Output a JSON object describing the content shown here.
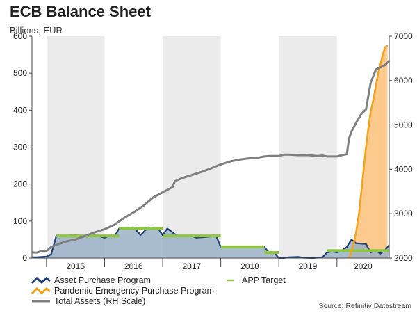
{
  "chart_data": {
    "type": "line",
    "title": "ECB Balance Sheet",
    "subtitle": "Billions, EUR",
    "source": "Source: Refinitiv Datastream",
    "y_left": {
      "min": 0,
      "max": 600,
      "ticks": [
        0,
        100,
        200,
        300,
        400,
        500,
        600
      ]
    },
    "y_right": {
      "min": 2000,
      "max": 7000,
      "ticks": [
        2000,
        3000,
        4000,
        5000,
        6000,
        7000
      ]
    },
    "x_range": [
      2014.75,
      2020.9
    ],
    "year_labels": [
      "2015",
      "2016",
      "2017",
      "2018",
      "2019",
      "2020"
    ],
    "shaded_years": [
      2015,
      2017,
      2019
    ],
    "colors": {
      "app": "#1f3f73",
      "app_fill": "#9bb0c8",
      "pepp": "#f7a11a",
      "pepp_fill": "#fdca8e",
      "total": "#7f7f7f",
      "target": "#8dc63f",
      "shade": "#ebebeb",
      "axis": "#444444"
    },
    "series": [
      {
        "name": "Asset Purchase Program",
        "axis": "left",
        "points": [
          [
            2014.75,
            2
          ],
          [
            2014.83,
            2
          ],
          [
            2014.92,
            3
          ],
          [
            2015.0,
            4
          ],
          [
            2015.08,
            10
          ],
          [
            2015.17,
            60
          ],
          [
            2015.5,
            62
          ],
          [
            2015.7,
            58
          ],
          [
            2015.83,
            62
          ],
          [
            2016.0,
            55
          ],
          [
            2016.08,
            60
          ],
          [
            2016.17,
            58
          ],
          [
            2016.25,
            80
          ],
          [
            2016.5,
            83
          ],
          [
            2016.62,
            62
          ],
          [
            2016.75,
            83
          ],
          [
            2016.92,
            80
          ],
          [
            2017.0,
            62
          ],
          [
            2017.08,
            80
          ],
          [
            2017.25,
            60
          ],
          [
            2017.5,
            60
          ],
          [
            2017.58,
            55
          ],
          [
            2017.75,
            57
          ],
          [
            2017.92,
            60
          ],
          [
            2018.0,
            30
          ],
          [
            2018.25,
            30
          ],
          [
            2018.75,
            30
          ],
          [
            2018.83,
            15
          ],
          [
            2018.92,
            15
          ],
          [
            2019.0,
            0
          ],
          [
            2019.08,
            0
          ],
          [
            2019.17,
            2
          ],
          [
            2019.33,
            3
          ],
          [
            2019.42,
            1
          ],
          [
            2019.58,
            0
          ],
          [
            2019.75,
            2
          ],
          [
            2019.83,
            15
          ],
          [
            2019.92,
            18
          ],
          [
            2020.0,
            15
          ],
          [
            2020.08,
            20
          ],
          [
            2020.17,
            30
          ],
          [
            2020.25,
            50
          ],
          [
            2020.33,
            40
          ],
          [
            2020.5,
            38
          ],
          [
            2020.58,
            15
          ],
          [
            2020.67,
            20
          ],
          [
            2020.75,
            12
          ],
          [
            2020.83,
            22
          ],
          [
            2020.9,
            35
          ]
        ]
      },
      {
        "name": "Pandemic Emergency Purchase Program",
        "axis": "left",
        "points": [
          [
            2020.21,
            0
          ],
          [
            2020.25,
            20
          ],
          [
            2020.29,
            40
          ],
          [
            2020.33,
            70
          ],
          [
            2020.38,
            120
          ],
          [
            2020.42,
            180
          ],
          [
            2020.46,
            240
          ],
          [
            2020.5,
            300
          ],
          [
            2020.54,
            350
          ],
          [
            2020.58,
            395
          ],
          [
            2020.63,
            430
          ],
          [
            2020.67,
            465
          ],
          [
            2020.71,
            500
          ],
          [
            2020.75,
            525
          ],
          [
            2020.79,
            550
          ],
          [
            2020.83,
            570
          ],
          [
            2020.87,
            575
          ]
        ]
      },
      {
        "name": "Total Assets (RH Scale)",
        "axis": "right",
        "points": [
          [
            2014.75,
            2130
          ],
          [
            2014.83,
            2120
          ],
          [
            2014.92,
            2160
          ],
          [
            2015.0,
            2160
          ],
          [
            2015.08,
            2250
          ],
          [
            2015.17,
            2300
          ],
          [
            2015.33,
            2370
          ],
          [
            2015.5,
            2420
          ],
          [
            2015.67,
            2500
          ],
          [
            2015.83,
            2580
          ],
          [
            2016.0,
            2650
          ],
          [
            2016.17,
            2750
          ],
          [
            2016.33,
            2900
          ],
          [
            2016.5,
            3030
          ],
          [
            2016.67,
            3180
          ],
          [
            2016.83,
            3360
          ],
          [
            2017.0,
            3480
          ],
          [
            2017.17,
            3600
          ],
          [
            2017.21,
            3730
          ],
          [
            2017.33,
            3800
          ],
          [
            2017.5,
            3870
          ],
          [
            2017.67,
            3940
          ],
          [
            2017.83,
            4020
          ],
          [
            2018.0,
            4110
          ],
          [
            2018.17,
            4180
          ],
          [
            2018.33,
            4220
          ],
          [
            2018.5,
            4250
          ],
          [
            2018.67,
            4270
          ],
          [
            2018.75,
            4290
          ],
          [
            2018.83,
            4300
          ],
          [
            2019.0,
            4300
          ],
          [
            2019.08,
            4330
          ],
          [
            2019.17,
            4330
          ],
          [
            2019.33,
            4320
          ],
          [
            2019.5,
            4320
          ],
          [
            2019.67,
            4300
          ],
          [
            2019.75,
            4310
          ],
          [
            2019.83,
            4290
          ],
          [
            2019.92,
            4290
          ],
          [
            2020.0,
            4290
          ],
          [
            2020.08,
            4320
          ],
          [
            2020.17,
            4340
          ],
          [
            2020.21,
            4700
          ],
          [
            2020.25,
            4850
          ],
          [
            2020.33,
            5050
          ],
          [
            2020.42,
            5250
          ],
          [
            2020.5,
            5350
          ],
          [
            2020.58,
            5950
          ],
          [
            2020.67,
            6250
          ],
          [
            2020.75,
            6300
          ],
          [
            2020.83,
            6350
          ],
          [
            2020.9,
            6450
          ]
        ]
      },
      {
        "name": "APP Target",
        "axis": "left",
        "segments": [
          {
            "from": 2015.17,
            "to": 2016.25,
            "value": 60
          },
          {
            "from": 2016.25,
            "to": 2017.0,
            "value": 80
          },
          {
            "from": 2017.0,
            "to": 2018.0,
            "value": 60
          },
          {
            "from": 2018.0,
            "to": 2018.75,
            "value": 30
          },
          {
            "from": 2018.75,
            "to": 2019.0,
            "value": 15
          },
          {
            "from": 2019.83,
            "to": 2020.9,
            "value": 20
          }
        ]
      }
    ],
    "legend": [
      {
        "key": "app",
        "label": "Asset Purchase Program"
      },
      {
        "key": "pepp",
        "label": "Pandemic Emergency Purchase Program"
      },
      {
        "key": "total",
        "label": "Total Assets (RH Scale)"
      },
      {
        "key": "target",
        "label": "APP Target"
      }
    ]
  }
}
